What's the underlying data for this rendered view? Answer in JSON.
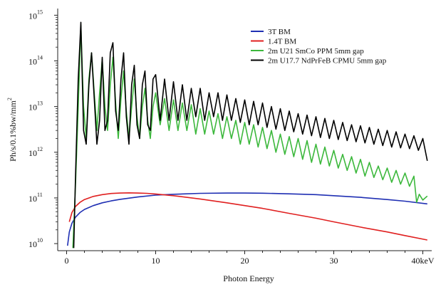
{
  "chart_data": {
    "type": "line",
    "title": "",
    "xlabel": "Photon Energy",
    "ylabel_base": "Ph/s/0.1%bw/mm",
    "ylabel_sup": "2",
    "xlim": [
      -1,
      41
    ],
    "ylim": [
      7000000000.0,
      1400000000000000.0
    ],
    "y_scale": "log",
    "grid": false,
    "legend_position": "top-right",
    "x_ticks": [
      {
        "value": 0,
        "label": "0"
      },
      {
        "value": 10,
        "label": "10"
      },
      {
        "value": 20,
        "label": "20"
      },
      {
        "value": 30,
        "label": "30"
      },
      {
        "value": 40,
        "label": "40keV"
      }
    ],
    "y_ticks": [
      {
        "value": 10000000000.0,
        "base": "10",
        "exp": "10"
      },
      {
        "value": 100000000000.0,
        "base": "10",
        "exp": "11"
      },
      {
        "value": 1000000000000.0,
        "base": "10",
        "exp": "12"
      },
      {
        "value": 10000000000000.0,
        "base": "10",
        "exp": "13"
      },
      {
        "value": 100000000000000.0,
        "base": "10",
        "exp": "14"
      },
      {
        "value": 1000000000000000.0,
        "base": "10",
        "exp": "15"
      }
    ],
    "series": [
      {
        "name": "3T BM",
        "color": "#1f2fb3",
        "x": [
          0.1,
          0.3,
          0.6,
          1,
          1.5,
          2,
          3,
          4,
          5,
          6,
          8,
          10,
          12,
          15,
          18,
          20,
          22,
          25,
          28,
          30,
          33,
          36,
          38,
          40.5
        ],
        "y": [
          9000000000.0,
          18000000000.0,
          28000000000.0,
          38000000000.0,
          48000000000.0,
          56000000000.0,
          68000000000.0,
          78000000000.0,
          86000000000.0,
          93000000000.0,
          105000000000.0,
          115000000000.0,
          120000000000.0,
          126000000000.0,
          128000000000.0,
          128000000000.0,
          127000000000.0,
          123000000000.0,
          118000000000.0,
          112000000000.0,
          103000000000.0,
          92000000000.0,
          85000000000.0,
          74000000000.0
        ]
      },
      {
        "name": "1.4T BM",
        "color": "#e02020",
        "x": [
          0.3,
          0.6,
          1,
          1.5,
          2,
          3,
          4,
          5,
          6,
          7,
          8,
          9,
          10,
          12,
          15,
          18,
          20,
          22,
          25,
          28,
          30,
          33,
          36,
          38,
          40.5
        ],
        "y": [
          30000000000.0,
          48000000000.0,
          65000000000.0,
          80000000000.0,
          92000000000.0,
          108000000000.0,
          118000000000.0,
          125000000000.0,
          128000000000.0,
          129000000000.0,
          128000000000.0,
          126000000000.0,
          122000000000.0,
          112000000000.0,
          95000000000.0,
          78000000000.0,
          68000000000.0,
          59000000000.0,
          46000000000.0,
          36000000000.0,
          30000000000.0,
          23000000000.0,
          18000000000.0,
          15000000000.0,
          12000000000.0
        ]
      },
      {
        "name": "2m U21 SmCo PPM 5mm gap",
        "color": "#3cb83c",
        "x": [
          0.7,
          1.0,
          1.3,
          1.6,
          1.9,
          2.2,
          2.5,
          2.8,
          3.1,
          3.4,
          3.7,
          4.0,
          4.3,
          4.6,
          4.9,
          5.2,
          5.5,
          5.8,
          6.1,
          6.4,
          6.7,
          7.0,
          7.3,
          7.6,
          7.9,
          8.2,
          8.5,
          8.8,
          9.1,
          9.4,
          9.7,
          10.0,
          10.5,
          11,
          11.5,
          12,
          12.5,
          13,
          13.5,
          14,
          14.5,
          15,
          15.5,
          16,
          16.5,
          17,
          17.5,
          18,
          18.5,
          19,
          19.5,
          20,
          20.5,
          21,
          21.5,
          22,
          22.5,
          23,
          23.5,
          24,
          24.5,
          25,
          25.5,
          26,
          26.5,
          27,
          27.5,
          28,
          28.5,
          29,
          29.5,
          30,
          30.5,
          31,
          31.5,
          32,
          32.5,
          33,
          33.5,
          34,
          34.5,
          35,
          35.5,
          36,
          36.5,
          37,
          37.5,
          38,
          38.5,
          39,
          39.3,
          39.6,
          40,
          40.5
        ],
        "y": [
          8000000000.0,
          200000000000.0,
          10000000000000.0,
          600000000000000.0,
          10000000000000.0,
          2000000000000.0,
          40000000000000.0,
          150000000000000.0,
          20000000000000.0,
          3000000000000.0,
          20000000000000.0,
          110000000000000.0,
          10000000000000.0,
          3000000000000.0,
          30000000000000.0,
          120000000000000.0,
          12000000000000.0,
          2000000000000.0,
          15000000000000.0,
          60000000000000.0,
          8000000000000.0,
          2000000000000.0,
          10000000000000.0,
          40000000000000.0,
          6000000000000.0,
          2000000000000.0,
          10000000000000.0,
          25000000000000.0,
          5000000000000.0,
          2000000000000.0,
          10000000000000.0,
          20000000000000.0,
          4000000000000.0,
          15000000000000.0,
          3000000000000.0,
          14000000000000.0,
          3000000000000.0,
          12000000000000.0,
          3000000000000.0,
          11000000000000.0,
          2500000000000.0,
          9000000000000.0,
          2500000000000.0,
          8000000000000.0,
          2500000000000.0,
          7000000000000.0,
          2000000000000.0,
          6000000000000.0,
          2000000000000.0,
          5000000000000.0,
          1500000000000.0,
          4500000000000.0,
          1500000000000.0,
          4000000000000.0,
          1300000000000.0,
          3500000000000.0,
          1200000000000.0,
          3000000000000.0,
          1000000000000.0,
          2500000000000.0,
          900000000000.0,
          2200000000000.0,
          800000000000.0,
          2000000000000.0,
          700000000000.0,
          1800000000000.0,
          600000000000.0,
          1500000000000.0,
          550000000000.0,
          1300000000000.0,
          500000000000.0,
          1100000000000.0,
          450000000000.0,
          900000000000.0,
          400000000000.0,
          800000000000.0,
          350000000000.0,
          700000000000.0,
          300000000000.0,
          600000000000.0,
          280000000000.0,
          500000000000.0,
          250000000000.0,
          450000000000.0,
          220000000000.0,
          400000000000.0,
          200000000000.0,
          350000000000.0,
          180000000000.0,
          300000000000.0,
          80000000000.0,
          120000000000.0,
          90000000000.0,
          110000000000.0
        ]
      },
      {
        "name": "2m U17.7 NdPrFeB CPMU 5mm gap",
        "color": "#000000",
        "x": [
          0.8,
          1.0,
          1.3,
          1.6,
          1.9,
          2.2,
          2.5,
          2.8,
          3.1,
          3.4,
          3.7,
          4.0,
          4.3,
          4.6,
          4.9,
          5.2,
          5.5,
          5.8,
          6.1,
          6.4,
          6.7,
          7.0,
          7.3,
          7.6,
          7.9,
          8.2,
          8.5,
          8.8,
          9.1,
          9.4,
          9.7,
          10.0,
          10.5,
          11,
          11.5,
          12,
          12.5,
          13,
          13.5,
          14,
          14.5,
          15,
          15.5,
          16,
          16.5,
          17,
          17.5,
          18,
          18.5,
          19,
          19.5,
          20,
          20.5,
          21,
          21.5,
          22,
          22.5,
          23,
          23.5,
          24,
          24.5,
          25,
          25.5,
          26,
          26.5,
          27,
          27.5,
          28,
          28.5,
          29,
          29.5,
          30,
          30.5,
          31,
          31.5,
          32,
          32.5,
          33,
          33.5,
          34,
          34.5,
          35,
          35.5,
          36,
          36.5,
          37,
          37.5,
          38,
          38.5,
          39,
          39.5,
          40,
          40.5
        ],
        "y": [
          8000000000.0,
          300000000000.0,
          40000000000000.0,
          700000000000000.0,
          3000000000000.0,
          1500000000000.0,
          30000000000000.0,
          150000000000000.0,
          15000000000000.0,
          1500000000000.0,
          5000000000000.0,
          120000000000000.0,
          3000000000000.0,
          5000000000000.0,
          150000000000000.0,
          250000000000000.0,
          8000000000000.0,
          3000000000000.0,
          40000000000000.0,
          150000000000000.0,
          6000000000000.0,
          1500000000000.0,
          30000000000000.0,
          80000000000000.0,
          4000000000000.0,
          2000000000000.0,
          30000000000000.0,
          60000000000000.0,
          4000000000000.0,
          3000000000000.0,
          40000000000000.0,
          50000000000000.0,
          5000000000000.0,
          40000000000000.0,
          5000000000000.0,
          35000000000000.0,
          5000000000000.0,
          30000000000000.0,
          5000000000000.0,
          25000000000000.0,
          6000000000000.0,
          25000000000000.0,
          5000000000000.0,
          20000000000000.0,
          6000000000000.0,
          20000000000000.0,
          5000000000000.0,
          18000000000000.0,
          5000000000000.0,
          15000000000000.0,
          4500000000000.0,
          14000000000000.0,
          4000000000000.0,
          13000000000000.0,
          4000000000000.0,
          12000000000000.0,
          3500000000000.0,
          10000000000000.0,
          3200000000000.0,
          9000000000000.0,
          3000000000000.0,
          8000000000000.0,
          2800000000000.0,
          7000000000000.0,
          2500000000000.0,
          6500000000000.0,
          2300000000000.0,
          6000000000000.0,
          2100000000000.0,
          5500000000000.0,
          2000000000000.0,
          5000000000000.0,
          1900000000000.0,
          4500000000000.0,
          1800000000000.0,
          4000000000000.0,
          1700000000000.0,
          3800000000000.0,
          1600000000000.0,
          3500000000000.0,
          1500000000000.0,
          3200000000000.0,
          1400000000000.0,
          3000000000000.0,
          1300000000000.0,
          2800000000000.0,
          1250000000000.0,
          2500000000000.0,
          1200000000000.0,
          2300000000000.0,
          1100000000000.0,
          2000000000000.0,
          650000000000.0
        ]
      }
    ]
  }
}
